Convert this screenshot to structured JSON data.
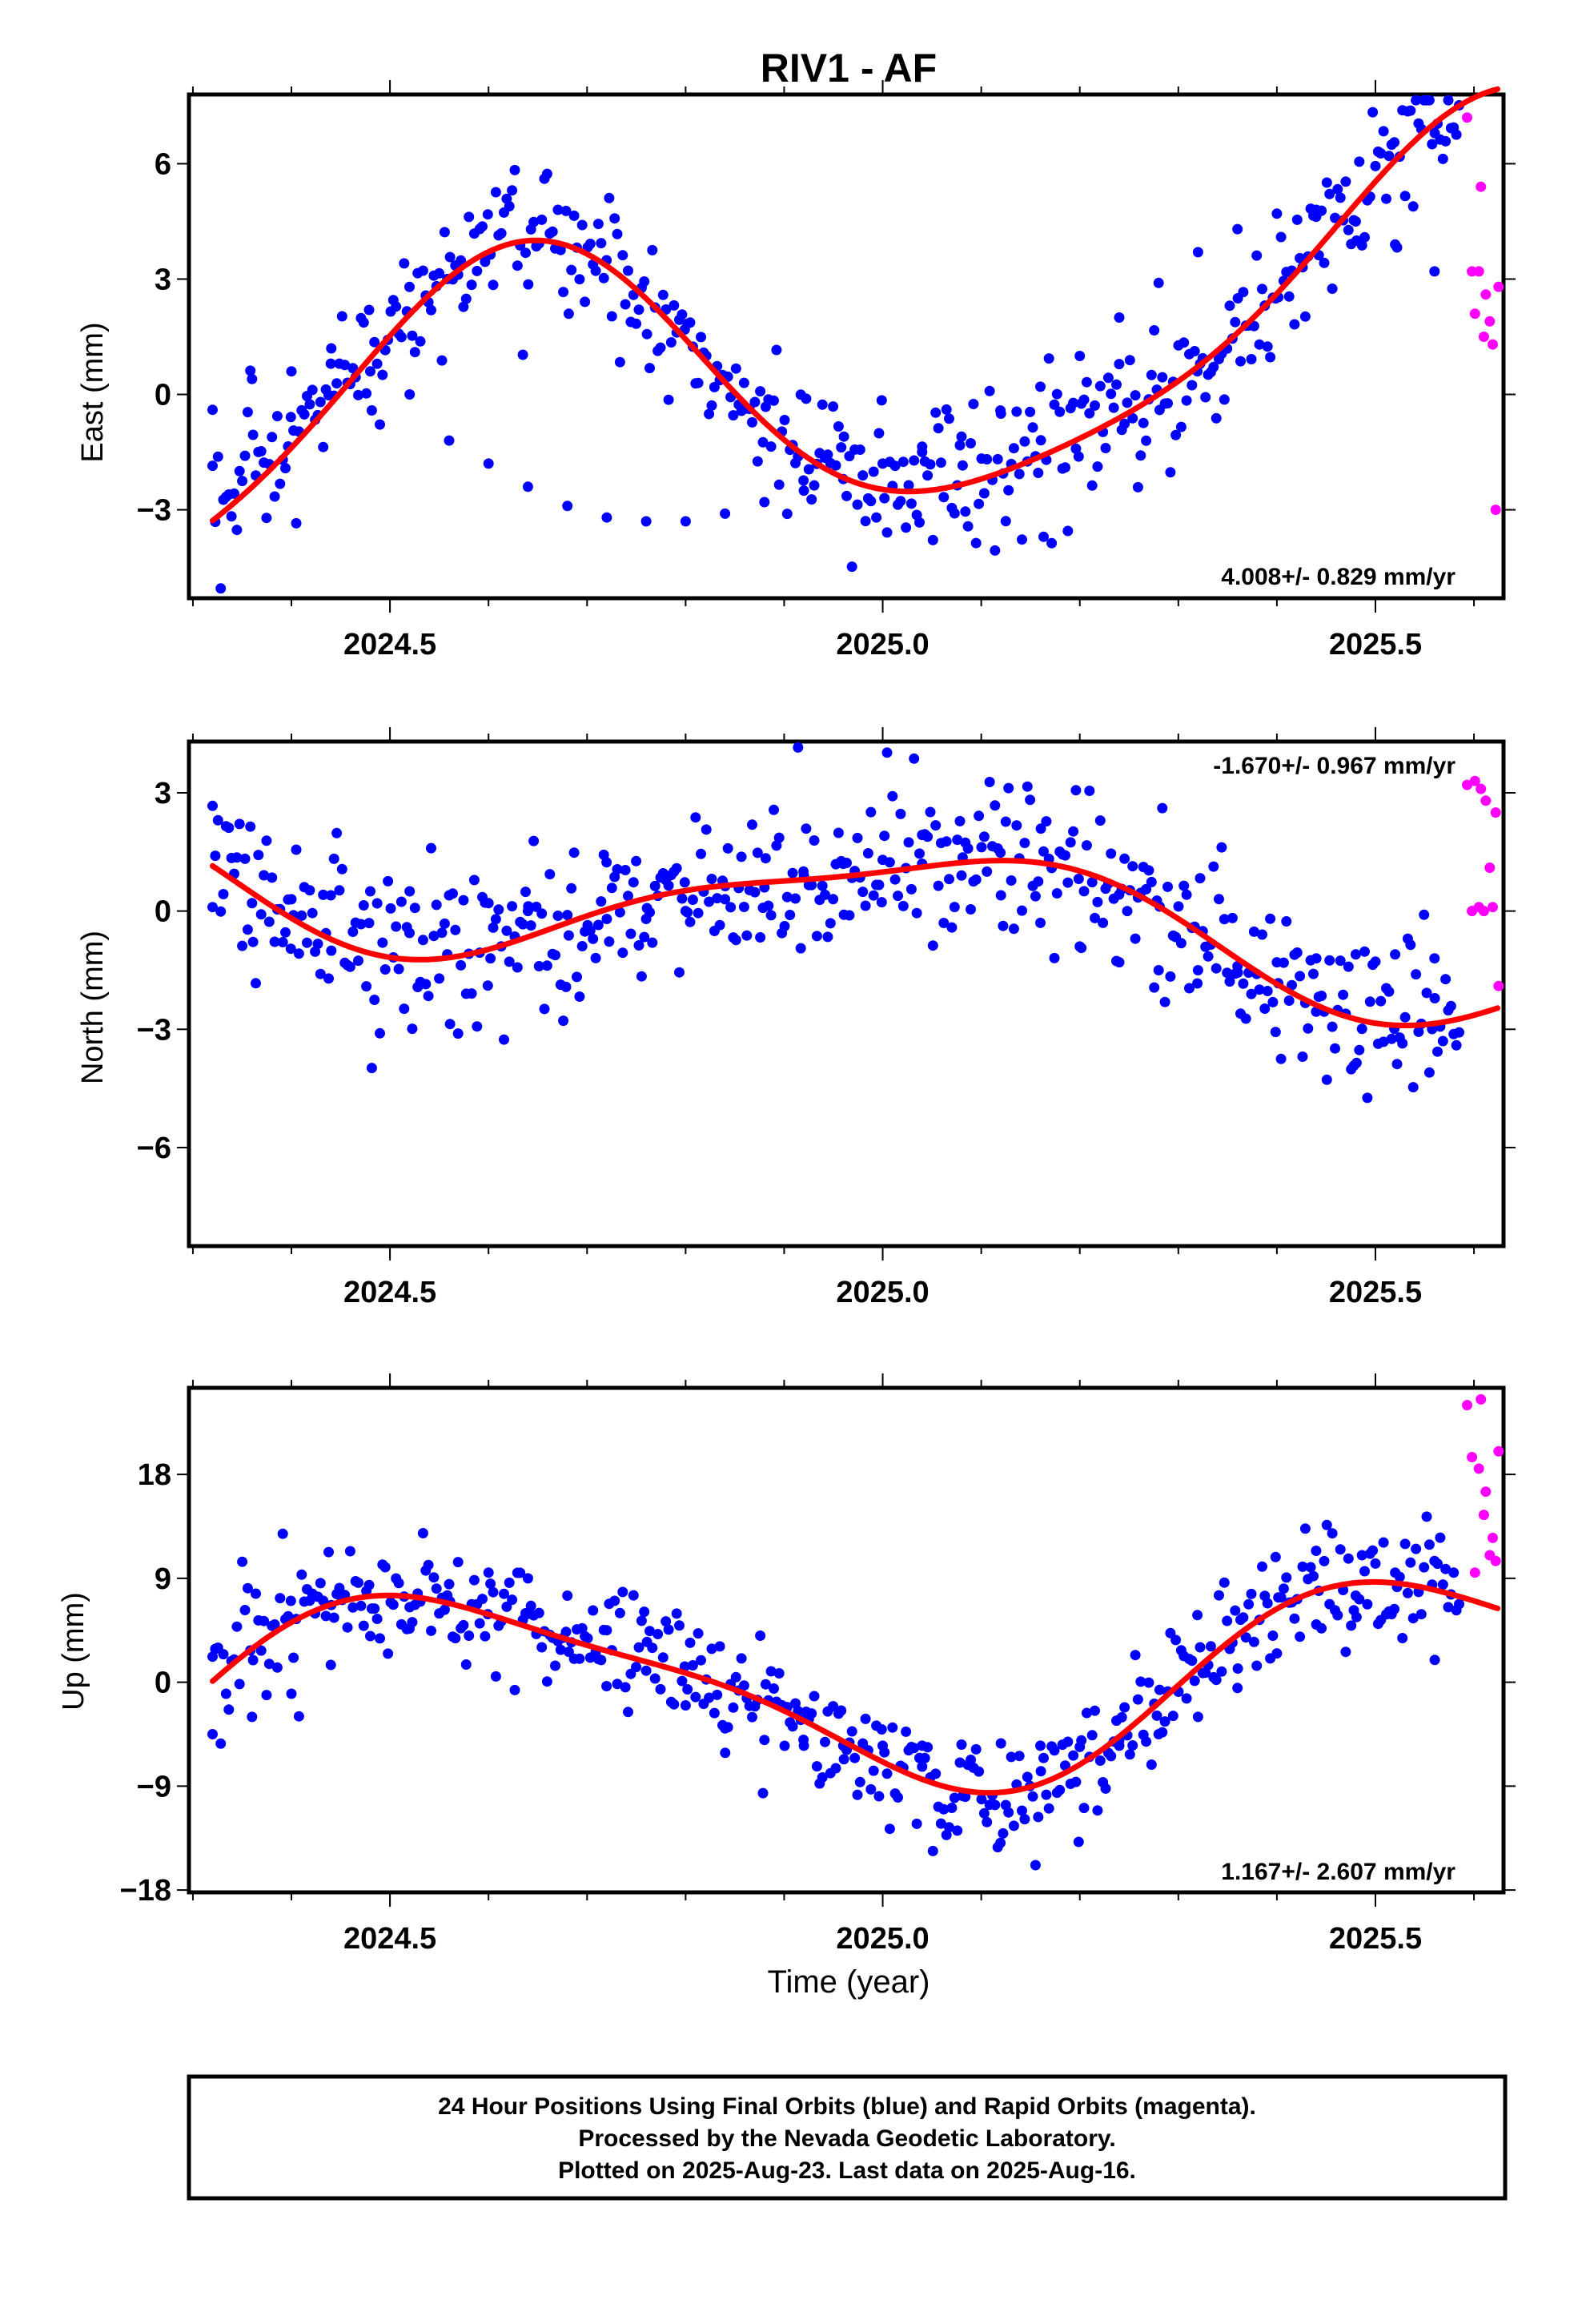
{
  "colors": {
    "final": "#0000ff",
    "rapid": "#ff00ff",
    "trend": "#ff0000",
    "frame": "#000000"
  },
  "chart_data": [
    {
      "type": "scatter",
      "title": "RIV1 - AF",
      "ylabel": "East (mm)",
      "xlabel": "",
      "xlim": [
        2024.296,
        2025.63
      ],
      "ylim": [
        -5.3,
        7.8
      ],
      "yticks": [
        -3,
        0,
        3,
        6
      ],
      "xticks": [
        2024.5,
        2025.0,
        2025.5
      ],
      "xtick_labels": [
        "2024.5",
        "2025.0",
        "2025.5"
      ],
      "rate": "4.008+/- 0.829 mm/yr",
      "rate_position": "bottom-right",
      "model": {
        "mean": 0.83,
        "slope": 4.008,
        "ref": 2025.0,
        "annual_sin": -2.6,
        "annual_cos": -3.0,
        "semi_sin": 0.65,
        "semi_cos": -0.3
      },
      "noise": 1.0,
      "series": [
        {
          "name": "Final Orbits",
          "color": "#0000ff",
          "x": [
            2024.32,
            2024.36,
            2024.4,
            2024.44,
            2024.48,
            2024.52,
            2024.56,
            2024.6,
            2024.64,
            2024.68,
            2024.72,
            2024.76,
            2024.8,
            2024.84,
            2024.88,
            2024.92,
            2024.96,
            2025.0,
            2025.04,
            2025.08,
            2025.12,
            2025.16,
            2025.2,
            2025.24,
            2025.28,
            2025.32,
            2025.36,
            2025.4,
            2025.44,
            2025.48,
            2025.52,
            2025.56
          ],
          "y": [
            -0.4,
            0.4,
            0.6,
            0.8,
            0.6,
            0.0,
            -1.2,
            -1.8,
            -2.4,
            -2.9,
            -3.2,
            -3.3,
            -3.3,
            -3.1,
            -2.8,
            -2.5,
            -2.2,
            -1.8,
            -1.5,
            -1.1,
            -0.5,
            0.2,
            1.0,
            2.0,
            2.9,
            3.7,
            4.3,
            4.7,
            4.8,
            4.5,
            3.9,
            3.2
          ]
        },
        {
          "name": "Rapid Orbits",
          "color": "#ff00ff",
          "x": [
            2025.593,
            2025.598,
            2025.601,
            2025.605,
            2025.607,
            2025.61,
            2025.612,
            2025.616,
            2025.619,
            2025.622,
            2025.625
          ],
          "y": [
            7.2,
            3.2,
            2.1,
            3.2,
            5.4,
            1.5,
            2.6,
            1.9,
            1.3,
            -3.0,
            2.8
          ]
        }
      ],
      "trend": {
        "name": "Fit",
        "color": "#ff0000"
      }
    },
    {
      "type": "scatter",
      "title": "",
      "ylabel": "North (mm)",
      "xlabel": "",
      "xlim": [
        2024.296,
        2025.63
      ],
      "ylim": [
        -8.5,
        4.3
      ],
      "yticks": [
        -6,
        -3,
        0,
        3
      ],
      "xticks": [
        2024.5,
        2025.0,
        2025.5
      ],
      "xtick_labels": [
        "2024.5",
        "2025.0",
        "2025.5"
      ],
      "rate": "-1.670+/- 0.967 mm/yr",
      "rate_position": "top-right",
      "model": {
        "mean": -0.06,
        "slope": -1.67,
        "ref": 2025.0,
        "annual_sin": 0.55,
        "annual_cos": 1.5,
        "semi_sin": 0.1,
        "semi_cos": -0.45
      },
      "noise": 1.05,
      "series": [
        {
          "name": "Final Orbits",
          "color": "#0000ff",
          "x": [
            2024.32,
            2024.36,
            2024.4,
            2024.44,
            2024.48,
            2024.52,
            2024.56,
            2024.6,
            2024.64,
            2024.68,
            2024.72,
            2024.76,
            2024.8,
            2024.84,
            2024.88,
            2024.92,
            2024.96,
            2025.0,
            2025.04,
            2025.08,
            2025.12,
            2025.16,
            2025.2,
            2025.24,
            2025.28,
            2025.32,
            2025.36,
            2025.4,
            2025.44,
            2025.48,
            2025.52,
            2025.56
          ],
          "y": [
            0.1,
            0.2,
            0.3,
            0.4,
            0.5,
            0.5,
            0.4,
            0.2,
            0.0,
            -0.1,
            -0.2,
            -0.2,
            0.0,
            0.3,
            0.6,
            0.9,
            1.2,
            1.3,
            1.2,
            0.9,
            0.4,
            -0.3,
            -0.9,
            -1.3,
            -1.5,
            -1.5,
            -1.4,
            -1.3,
            -1.2,
            -1.1,
            -1.1,
            -1.2
          ]
        },
        {
          "name": "Rapid Orbits",
          "color": "#ff00ff",
          "x": [
            2025.593,
            2025.598,
            2025.601,
            2025.605,
            2025.607,
            2025.61,
            2025.612,
            2025.616,
            2025.619,
            2025.622,
            2025.625
          ],
          "y": [
            3.2,
            0.0,
            3.3,
            0.1,
            3.1,
            0.0,
            2.8,
            1.1,
            0.1,
            2.5,
            -1.9
          ]
        }
      ],
      "trend": {
        "name": "Fit",
        "color": "#ff0000"
      }
    },
    {
      "type": "scatter",
      "title": "",
      "ylabel": "Up (mm)",
      "xlabel": "Time (year)",
      "xlim": [
        2024.296,
        2025.63
      ],
      "ylim": [
        -18.2,
        25.5
      ],
      "yticks": [
        -18,
        -9,
        0,
        9,
        18
      ],
      "xticks": [
        2024.5,
        2025.0,
        2025.5
      ],
      "xtick_labels": [
        "2024.5",
        "2025.0",
        "2025.5"
      ],
      "rate": "1.167+/- 2.607 mm/yr",
      "rate_position": "bottom-right",
      "model": {
        "mean": -0.2,
        "slope": 1.167,
        "ref": 2025.0,
        "annual_sin": -3.3,
        "annual_cos": -7.5,
        "semi_sin": -1.8,
        "semi_cos": 0.8
      },
      "noise": 2.8,
      "series": [
        {
          "name": "Final Orbits",
          "color": "#0000ff",
          "x": [
            2024.32,
            2024.36,
            2024.4,
            2024.44,
            2024.48,
            2024.52,
            2024.56,
            2024.6,
            2024.64,
            2024.68,
            2024.72,
            2024.76,
            2024.8,
            2024.84,
            2024.88,
            2024.92,
            2024.96,
            2025.0,
            2025.04,
            2025.08,
            2025.12,
            2025.16,
            2025.2,
            2025.24,
            2025.28,
            2025.32,
            2025.36,
            2025.4,
            2025.44,
            2025.48,
            2025.52,
            2025.56
          ],
          "y": [
            -4.5,
            -3.0,
            -1.0,
            1.5,
            4.0,
            6.5,
            8.5,
            9.5,
            9.0,
            7.5,
            4.5,
            1.0,
            -2.0,
            -4.0,
            -5.0,
            -5.5,
            -5.5,
            -5.5,
            -5.5,
            -5.4,
            -5.3,
            -5.5,
            -5.6,
            -5.5,
            -4.5,
            -3.0,
            -0.5,
            2.5,
            5.0,
            7.5,
            9.5,
            10.5
          ]
        },
        {
          "name": "Rapid Orbits",
          "color": "#ff00ff",
          "x": [
            2025.593,
            2025.598,
            2025.601,
            2025.605,
            2025.607,
            2025.61,
            2025.612,
            2025.616,
            2025.619,
            2025.622,
            2025.625
          ],
          "y": [
            24.0,
            19.5,
            9.5,
            18.5,
            24.5,
            14.5,
            16.5,
            11.0,
            12.5,
            10.5,
            20.0
          ]
        }
      ],
      "trend": {
        "name": "Fit",
        "color": "#ff0000"
      }
    }
  ],
  "footer": {
    "line1": "24 Hour Positions Using Final Orbits (blue) and Rapid Orbits (magenta).",
    "line2": "Processed by the Nevada Geodetic Laboratory.",
    "line3": "Plotted on 2025-Aug-23. Last data on 2025-Aug-16."
  }
}
